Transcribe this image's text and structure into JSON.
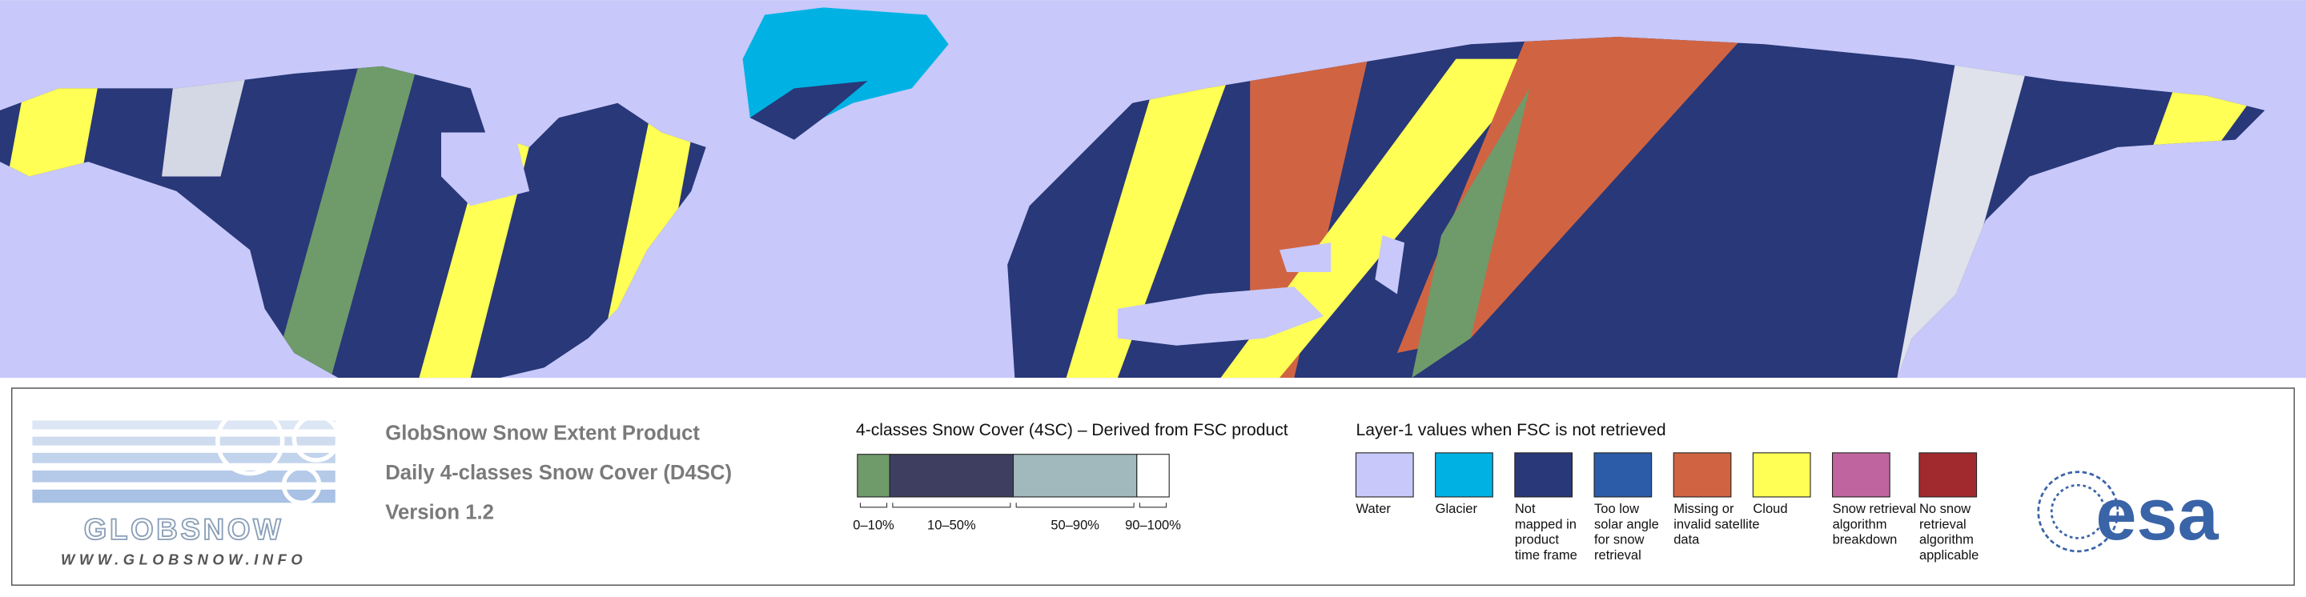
{
  "header": {
    "lines": [
      "GlobSnow Snow Extent Product",
      "Daily 4-classes Snow Cover (D4SC)",
      "Version 1.2"
    ]
  },
  "logo": {
    "name": "GLOBSNOW",
    "url": "WWW.GLOBSNOW.INFO"
  },
  "snow_cover": {
    "title": "4-classes Snow Cover (4SC) – Derived from FSC product",
    "classes": [
      {
        "label": "0–10%",
        "color": "#6f9a6a"
      },
      {
        "label": "10–50%",
        "color": "#3e3e60"
      },
      {
        "label": "50–90%",
        "color": "#a1b8bd"
      },
      {
        "label": "90–100%",
        "color": "#ffffff"
      }
    ]
  },
  "layer1": {
    "title": "Layer-1 values when FSC is not retrieved",
    "items": [
      {
        "lines": [
          "Water"
        ],
        "color": "#c8c8fa"
      },
      {
        "lines": [
          "Glacier"
        ],
        "color": "#00b2e3"
      },
      {
        "lines": [
          "Not",
          "mapped in",
          "product",
          "time frame"
        ],
        "color": "#283878"
      },
      {
        "lines": [
          "Too low",
          "solar angle",
          "for snow",
          "retrieval"
        ],
        "color": "#2c5ca8"
      },
      {
        "lines": [
          "Missing or",
          "invalid satellite",
          "data"
        ],
        "color": "#d06442"
      },
      {
        "lines": [
          "Cloud"
        ],
        "color": "#ffff55"
      },
      {
        "lines": [
          "Snow retrieval",
          "algorithm",
          "breakdown"
        ],
        "color": "#c0649f"
      },
      {
        "lines": [
          "No snow",
          "retrieval",
          "algorithm",
          "applicable"
        ],
        "color": "#a12a2e"
      }
    ]
  },
  "agency": {
    "name": "esa"
  }
}
